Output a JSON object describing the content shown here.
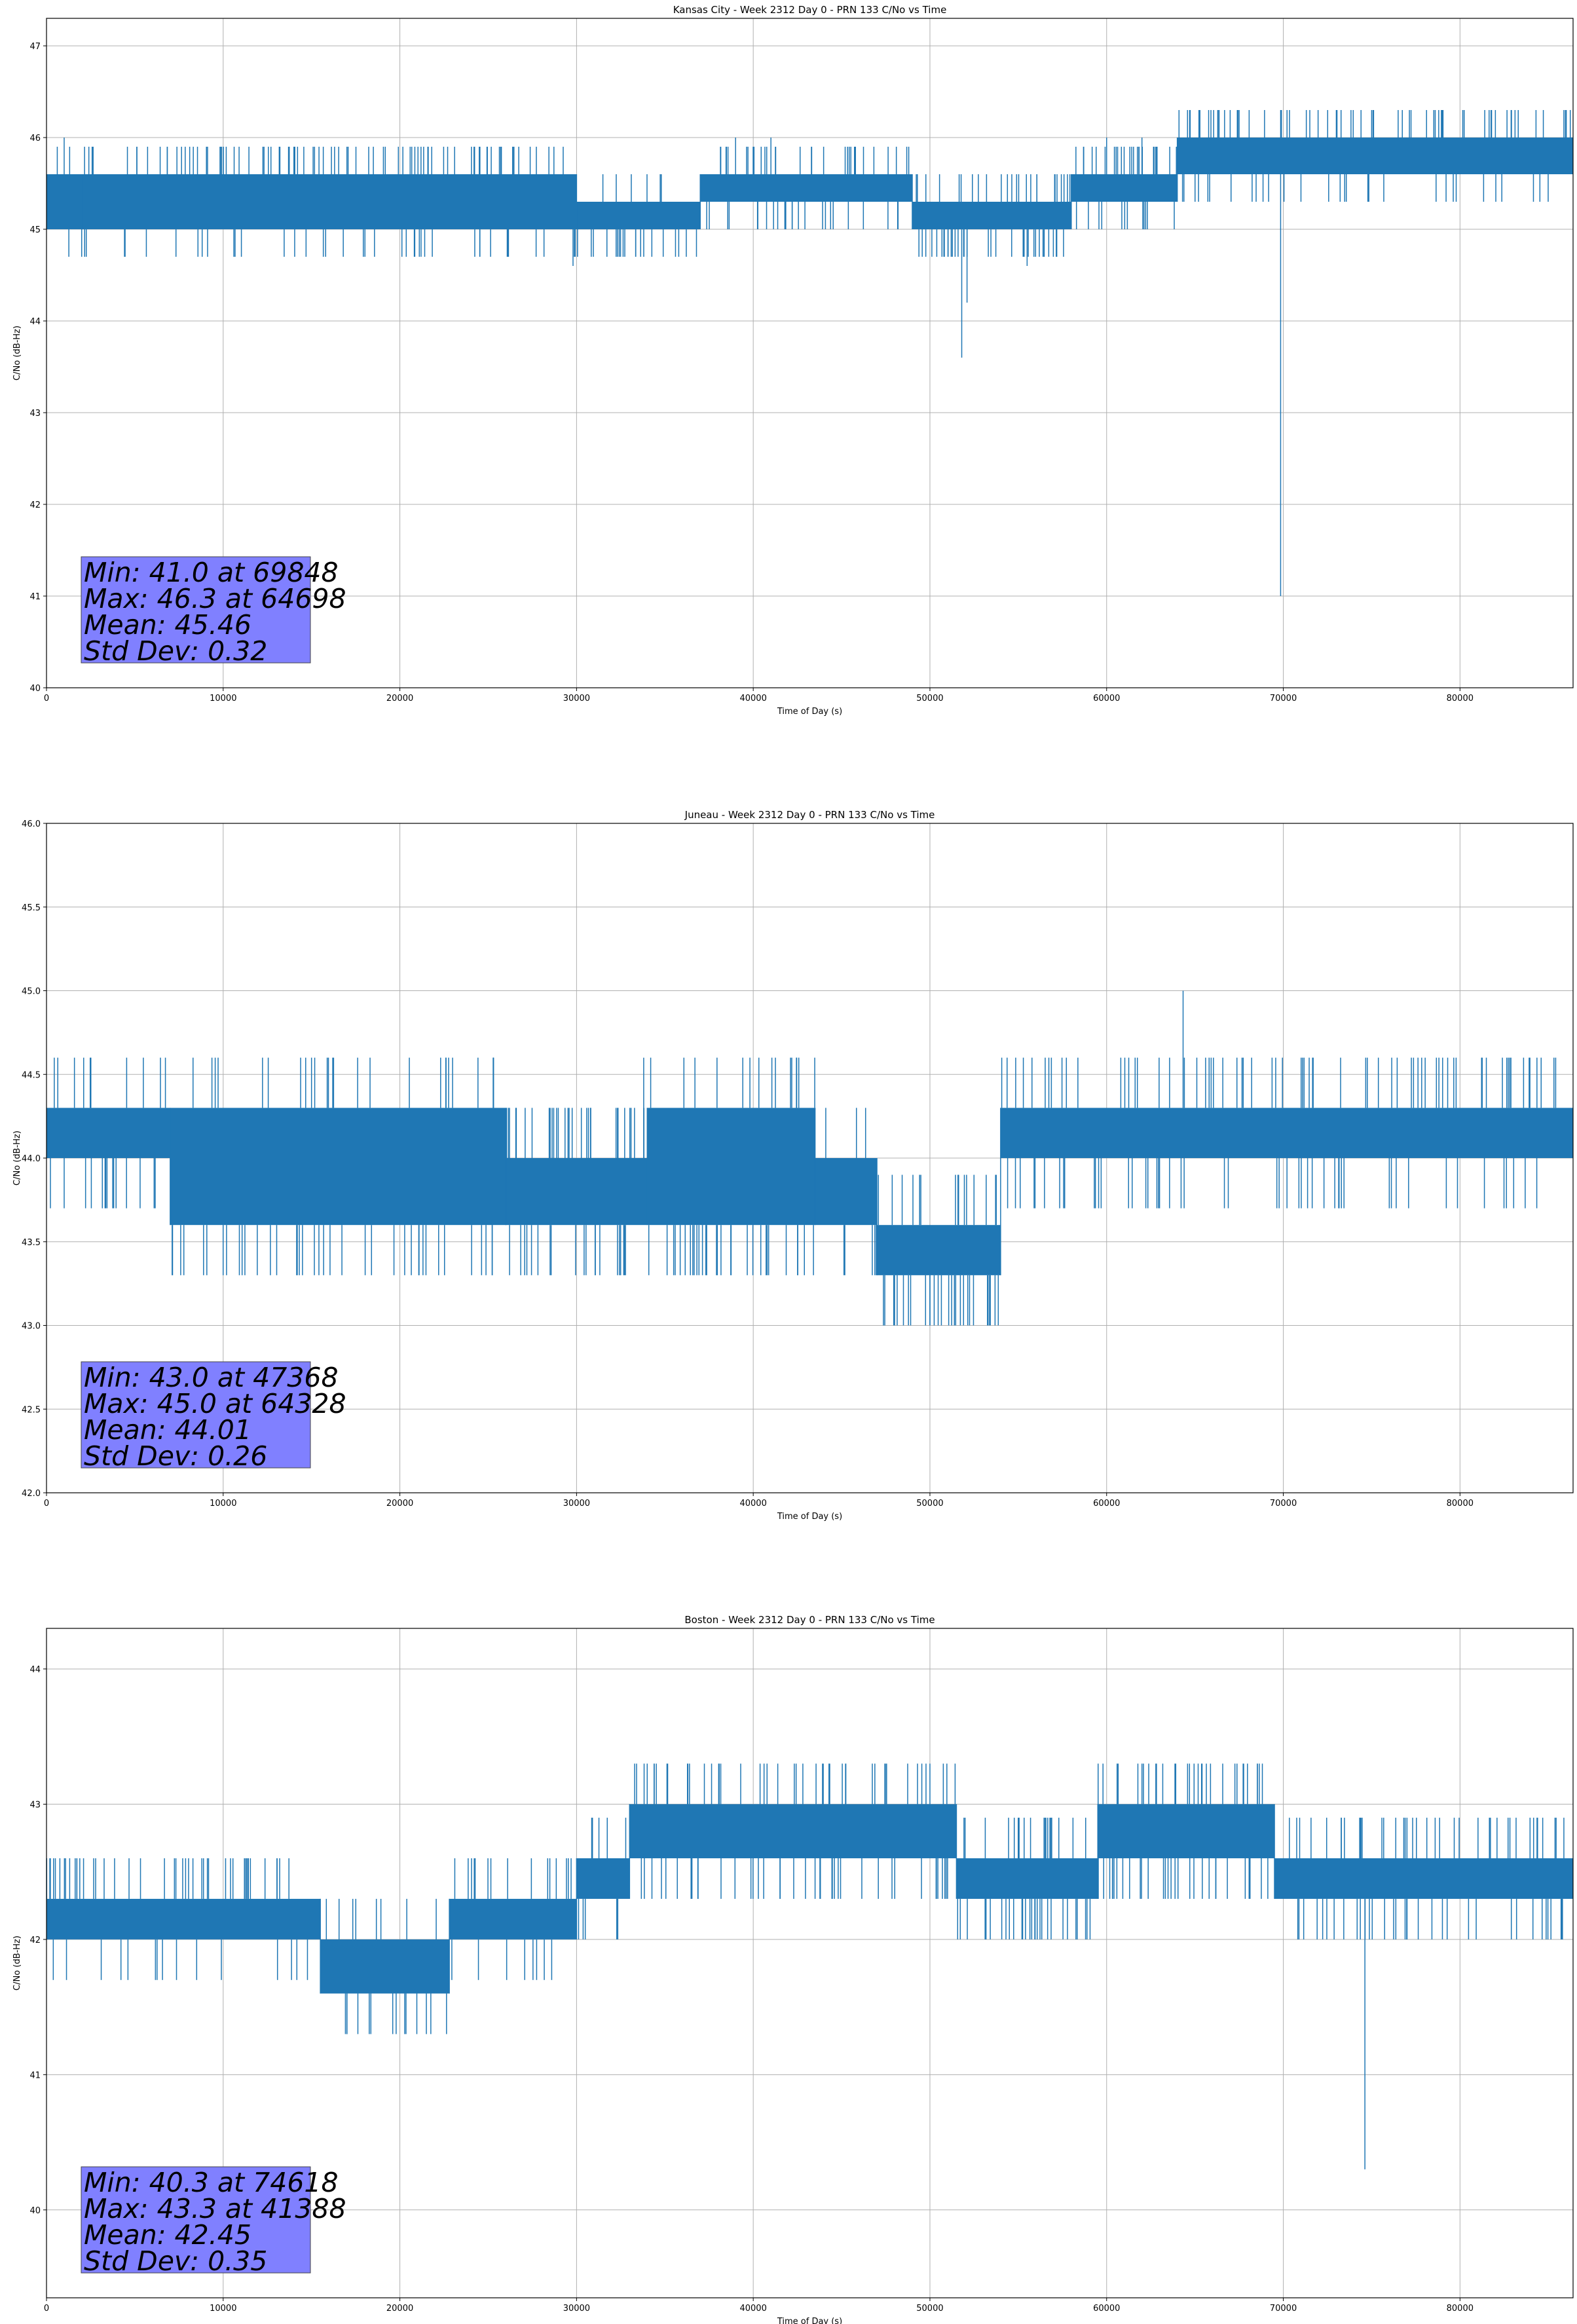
{
  "figure": {
    "series_color": "#1f77b4",
    "stats_box_color": "#8080ff"
  },
  "chart_data": [
    {
      "type": "line",
      "title": "Kansas City - Week 2312 Day 0 - PRN 133 C/No vs Time",
      "xlabel": "Time of Day (s)",
      "ylabel": "C/No (dB-Hz)",
      "xlim": [
        0,
        86400
      ],
      "ylim": [
        40,
        47.3
      ],
      "xticks": [
        0,
        10000,
        20000,
        30000,
        40000,
        50000,
        60000,
        70000,
        80000
      ],
      "yticks": [
        40,
        41,
        42,
        43,
        44,
        45,
        46,
        47
      ],
      "ytick_decimals": 0,
      "grid": true,
      "segments": [
        {
          "x0": 0,
          "x1": 2000,
          "mean": 45.4,
          "lo": 45.0,
          "hi": 45.6,
          "n_up": 2,
          "n_dn": 2
        },
        {
          "x0": 2000,
          "x1": 30000,
          "mean": 45.3,
          "lo": 45.0,
          "hi": 45.6,
          "n_up": 90,
          "n_dn": 40
        },
        {
          "x0": 30000,
          "x1": 37000,
          "mean": 45.1,
          "lo": 45.0,
          "hi": 45.3,
          "n_up": 6,
          "n_dn": 20
        },
        {
          "x0": 37000,
          "x1": 49000,
          "mean": 45.4,
          "lo": 45.3,
          "hi": 45.6,
          "n_up": 30,
          "n_dn": 25
        },
        {
          "x0": 49000,
          "x1": 58000,
          "mean": 45.1,
          "lo": 45.0,
          "hi": 45.3,
          "n_up": 25,
          "n_dn": 35
        },
        {
          "x0": 58000,
          "x1": 64000,
          "mean": 45.5,
          "lo": 45.3,
          "hi": 45.6,
          "n_up": 25,
          "n_dn": 12
        },
        {
          "x0": 64000,
          "x1": 86400,
          "mean": 45.8,
          "lo": 45.6,
          "hi": 46.0,
          "n_up": 60,
          "n_dn": 30
        }
      ],
      "spikes": [
        {
          "x": 1000,
          "y": 46.0
        },
        {
          "x": 39000,
          "y": 46.0
        },
        {
          "x": 41000,
          "y": 46.0
        },
        {
          "x": 29800,
          "y": 44.6
        },
        {
          "x": 51800,
          "y": 43.6
        },
        {
          "x": 52100,
          "y": 44.2
        },
        {
          "x": 55500,
          "y": 44.6
        },
        {
          "x": 60000,
          "y": 46.0
        },
        {
          "x": 62000,
          "y": 46.0
        },
        {
          "x": 64698,
          "y": 46.3
        },
        {
          "x": 67500,
          "y": 46.3
        },
        {
          "x": 69848,
          "y": 41.0
        },
        {
          "x": 71500,
          "y": 46.3
        },
        {
          "x": 73000,
          "y": 46.3
        },
        {
          "x": 75000,
          "y": 46.3
        },
        {
          "x": 76500,
          "y": 46.3
        },
        {
          "x": 79000,
          "y": 46.3
        }
      ],
      "stats": {
        "lines": [
          "Min: 41.0 at 69848",
          "Max: 46.3 at 64698",
          "Mean: 45.46",
          "Std Dev: 0.32"
        ]
      }
    },
    {
      "type": "line",
      "title": "Juneau - Week 2312 Day 0 - PRN 133 C/No vs Time",
      "xlabel": "Time of Day (s)",
      "ylabel": "C/No (dB-Hz)",
      "xlim": [
        0,
        86400
      ],
      "ylim": [
        42.0,
        46.0
      ],
      "xticks": [
        0,
        10000,
        20000,
        30000,
        40000,
        50000,
        60000,
        70000,
        80000
      ],
      "yticks": [
        42.0,
        42.5,
        43.0,
        43.5,
        44.0,
        44.5,
        45.0,
        45.5,
        46.0
      ],
      "ytick_decimals": 1,
      "grid": true,
      "segments": [
        {
          "x0": 0,
          "x1": 7000,
          "mean": 44.15,
          "lo": 44.0,
          "hi": 44.3,
          "n_up": 10,
          "n_dn": 15
        },
        {
          "x0": 7000,
          "x1": 26000,
          "mean": 44.0,
          "lo": 43.6,
          "hi": 44.3,
          "n_up": 25,
          "n_dn": 40
        },
        {
          "x0": 26000,
          "x1": 34000,
          "mean": 43.8,
          "lo": 43.6,
          "hi": 44.0,
          "n_up": 30,
          "n_dn": 20
        },
        {
          "x0": 34000,
          "x1": 43500,
          "mean": 44.1,
          "lo": 43.6,
          "hi": 44.3,
          "n_up": 15,
          "n_dn": 30
        },
        {
          "x0": 43500,
          "x1": 47000,
          "mean": 43.8,
          "lo": 43.6,
          "hi": 44.0,
          "n_up": 3,
          "n_dn": 5
        },
        {
          "x0": 47000,
          "x1": 54000,
          "mean": 43.45,
          "lo": 43.3,
          "hi": 43.6,
          "n_up": 15,
          "n_dn": 25
        },
        {
          "x0": 54000,
          "x1": 86400,
          "mean": 44.15,
          "lo": 44.0,
          "hi": 44.3,
          "n_up": 70,
          "n_dn": 50
        }
      ],
      "spikes": [
        {
          "x": 47368,
          "y": 43.0
        },
        {
          "x": 48000,
          "y": 43.0
        },
        {
          "x": 48500,
          "y": 43.0
        },
        {
          "x": 50000,
          "y": 43.0
        },
        {
          "x": 64328,
          "y": 45.0
        },
        {
          "x": 33800,
          "y": 44.6
        },
        {
          "x": 15000,
          "y": 44.6
        }
      ],
      "stats": {
        "lines": [
          "Min: 43.0 at 47368",
          "Max: 45.0 at 64328",
          "Mean: 44.01",
          "Std Dev: 0.26"
        ]
      }
    },
    {
      "type": "line",
      "title": "Boston - Week 2312 Day 0 - PRN 133 C/No vs Time",
      "xlabel": "Time of Day (s)",
      "ylabel": "C/No (dB-Hz)",
      "xlim": [
        0,
        86400
      ],
      "ylim": [
        39.35,
        44.3
      ],
      "xticks": [
        0,
        10000,
        20000,
        30000,
        40000,
        50000,
        60000,
        70000,
        80000
      ],
      "yticks": [
        40,
        41,
        42,
        43,
        44
      ],
      "ytick_decimals": 0,
      "grid": true,
      "segments": [
        {
          "x0": 0,
          "x1": 15500,
          "mean": 42.15,
          "lo": 42.0,
          "hi": 42.3,
          "n_up": 45,
          "n_dn": 15
        },
        {
          "x0": 15500,
          "x1": 22800,
          "mean": 41.8,
          "lo": 41.6,
          "hi": 42.0,
          "n_up": 8,
          "n_dn": 12
        },
        {
          "x0": 22800,
          "x1": 30000,
          "mean": 42.15,
          "lo": 42.0,
          "hi": 42.3,
          "n_up": 15,
          "n_dn": 8
        },
        {
          "x0": 30000,
          "x1": 33000,
          "mean": 42.4,
          "lo": 42.3,
          "hi": 42.6,
          "n_up": 5,
          "n_dn": 5
        },
        {
          "x0": 33000,
          "x1": 51500,
          "mean": 42.8,
          "lo": 42.6,
          "hi": 43.0,
          "n_up": 45,
          "n_dn": 40
        },
        {
          "x0": 51500,
          "x1": 59500,
          "mean": 42.45,
          "lo": 42.3,
          "hi": 42.6,
          "n_up": 20,
          "n_dn": 30
        },
        {
          "x0": 59500,
          "x1": 69500,
          "mean": 42.8,
          "lo": 42.6,
          "hi": 43.0,
          "n_up": 30,
          "n_dn": 30
        },
        {
          "x0": 69500,
          "x1": 86400,
          "mean": 42.45,
          "lo": 42.3,
          "hi": 42.6,
          "n_up": 40,
          "n_dn": 35
        }
      ],
      "spikes": [
        {
          "x": 74618,
          "y": 40.3
        },
        {
          "x": 41388,
          "y": 43.3
        },
        {
          "x": 17000,
          "y": 41.3
        },
        {
          "x": 21500,
          "y": 41.3
        },
        {
          "x": 62000,
          "y": 43.3
        },
        {
          "x": 85800,
          "y": 42.0
        }
      ],
      "stats": {
        "lines": [
          "Min: 40.3 at 74618",
          "Max: 43.3 at 41388",
          "Mean: 42.45",
          "Std Dev: 0.35"
        ]
      }
    }
  ]
}
